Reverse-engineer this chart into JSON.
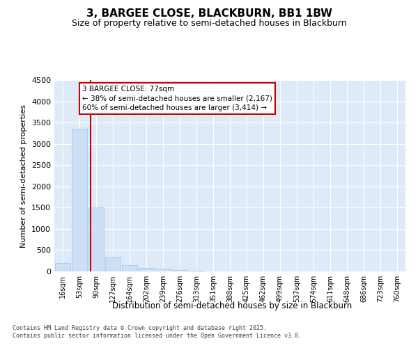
{
  "title": "3, BARGEE CLOSE, BLACKBURN, BB1 1BW",
  "subtitle": "Size of property relative to semi-detached houses in Blackburn",
  "xlabel": "Distribution of semi-detached houses by size in Blackburn",
  "ylabel": "Number of semi-detached properties",
  "footer": "Contains HM Land Registry data © Crown copyright and database right 2025.\nContains public sector information licensed under the Open Government Licence v3.0.",
  "categories": [
    "16sqm",
    "53sqm",
    "90sqm",
    "127sqm",
    "164sqm",
    "202sqm",
    "239sqm",
    "276sqm",
    "313sqm",
    "351sqm",
    "388sqm",
    "425sqm",
    "462sqm",
    "499sqm",
    "537sqm",
    "574sqm",
    "611sqm",
    "648sqm",
    "686sqm",
    "723sqm",
    "760sqm"
  ],
  "values": [
    200,
    3350,
    1500,
    350,
    150,
    90,
    60,
    30,
    10,
    5,
    2,
    0,
    0,
    0,
    0,
    0,
    0,
    0,
    0,
    0,
    0
  ],
  "bar_color": "#cce0f5",
  "bar_edge_color": "#a0c4e8",
  "bg_color": "#deeaf7",
  "grid_color": "#ffffff",
  "annotation_text": "3 BARGEE CLOSE: 77sqm\n← 38% of semi-detached houses are smaller (2,167)\n60% of semi-detached houses are larger (3,414) →",
  "annotation_box_color": "#cc0000",
  "ylim": [
    0,
    4500
  ],
  "yticks": [
    0,
    500,
    1000,
    1500,
    2000,
    2500,
    3000,
    3500,
    4000,
    4500
  ],
  "red_line_x": 1.65,
  "title_fontsize": 11,
  "subtitle_fontsize": 9
}
